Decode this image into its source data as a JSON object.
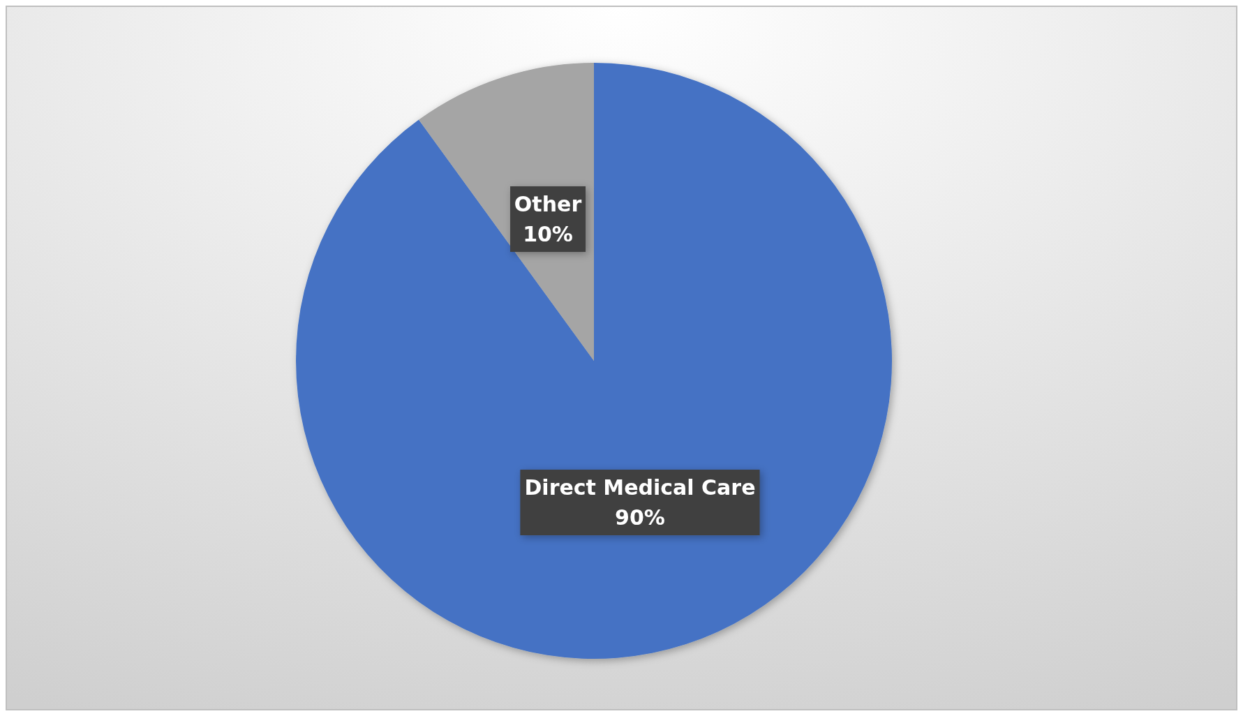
{
  "chart_data": {
    "type": "pie",
    "categories": [
      "Direct Medical Care",
      "Other"
    ],
    "values": [
      90,
      10
    ],
    "colors": [
      "#4472c4",
      "#a5a5a5"
    ],
    "value_labels": [
      "90%",
      "10%"
    ]
  }
}
